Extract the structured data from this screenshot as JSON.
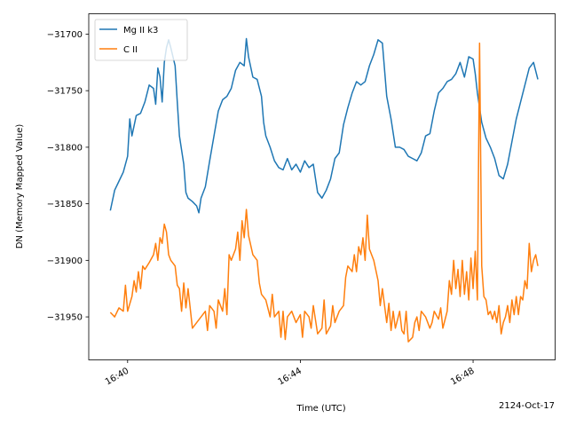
{
  "chart_data": {
    "type": "line",
    "xlabel": "Time (UTC)",
    "ylabel": "DN (Memory Mapped Value)",
    "date_label": "2124-Oct-17",
    "x_ticks": [
      "16:40",
      "16:44",
      "16:48"
    ],
    "y_ticks": [
      "−31950",
      "−31900",
      "−31850",
      "−31800",
      "−31750",
      "−31700"
    ],
    "xlim": [
      "16:39.1",
      "16:49.9"
    ],
    "ylim": [
      -31988,
      -31682
    ],
    "legend_position": "upper left",
    "series": [
      {
        "name": "Mg II k3",
        "color": "#1f77b4",
        "points": [
          [
            "16:39.6",
            -31856
          ],
          [
            "16:39.7",
            -31838
          ],
          [
            "16:39.8",
            -31830
          ],
          [
            "16:39.9",
            -31822
          ],
          [
            "16:40.0",
            -31808
          ],
          [
            "16:40.05",
            -31775
          ],
          [
            "16:40.1",
            -31790
          ],
          [
            "16:40.2",
            -31772
          ],
          [
            "16:40.3",
            -31770
          ],
          [
            "16:40.4",
            -31760
          ],
          [
            "16:40.5",
            -31745
          ],
          [
            "16:40.6",
            -31748
          ],
          [
            "16:40.65",
            -31762
          ],
          [
            "16:40.7",
            -31730
          ],
          [
            "16:40.75",
            -31738
          ],
          [
            "16:40.8",
            -31760
          ],
          [
            "16:40.85",
            -31725
          ],
          [
            "16:40.9",
            -31712
          ],
          [
            "16:40.95",
            -31705
          ],
          [
            "16:41.0",
            -31712
          ],
          [
            "16:41.1",
            -31728
          ],
          [
            "16:41.15",
            -31760
          ],
          [
            "16:41.2",
            -31790
          ],
          [
            "16:41.3",
            -31815
          ],
          [
            "16:41.35",
            -31840
          ],
          [
            "16:41.4",
            -31845
          ],
          [
            "16:41.5",
            -31848
          ],
          [
            "16:41.6",
            -31852
          ],
          [
            "16:41.65",
            -31858
          ],
          [
            "16:41.7",
            -31845
          ],
          [
            "16:41.8",
            -31835
          ],
          [
            "16:41.9",
            -31812
          ],
          [
            "16:42.0",
            -31790
          ],
          [
            "16:42.1",
            -31768
          ],
          [
            "16:42.2",
            -31758
          ],
          [
            "16:42.3",
            -31755
          ],
          [
            "16:42.4",
            -31748
          ],
          [
            "16:42.5",
            -31732
          ],
          [
            "16:42.6",
            -31725
          ],
          [
            "16:42.7",
            -31728
          ],
          [
            "16:42.75",
            -31704
          ],
          [
            "16:42.8",
            -31720
          ],
          [
            "16:42.9",
            -31738
          ],
          [
            "16:43.0",
            -31740
          ],
          [
            "16:43.1",
            -31755
          ],
          [
            "16:43.15",
            -31778
          ],
          [
            "16:43.2",
            -31790
          ],
          [
            "16:43.3",
            -31800
          ],
          [
            "16:43.4",
            -31812
          ],
          [
            "16:43.5",
            -31818
          ],
          [
            "16:43.6",
            -31820
          ],
          [
            "16:43.7",
            -31810
          ],
          [
            "16:43.8",
            -31820
          ],
          [
            "16:43.9",
            -31815
          ],
          [
            "16:44.0",
            -31822
          ],
          [
            "16:44.1",
            -31812
          ],
          [
            "16:44.2",
            -31818
          ],
          [
            "16:44.3",
            -31815
          ],
          [
            "16:44.4",
            -31840
          ],
          [
            "16:44.5",
            -31845
          ],
          [
            "16:44.6",
            -31838
          ],
          [
            "16:44.7",
            -31828
          ],
          [
            "16:44.8",
            -31810
          ],
          [
            "16:44.9",
            -31805
          ],
          [
            "16:45.0",
            -31780
          ],
          [
            "16:45.1",
            -31765
          ],
          [
            "16:45.2",
            -31752
          ],
          [
            "16:45.3",
            -31742
          ],
          [
            "16:45.4",
            -31745
          ],
          [
            "16:45.5",
            -31742
          ],
          [
            "16:45.6",
            -31728
          ],
          [
            "16:45.7",
            -31718
          ],
          [
            "16:45.8",
            -31705
          ],
          [
            "16:45.9",
            -31708
          ],
          [
            "16:46.0",
            -31755
          ],
          [
            "16:46.1",
            -31775
          ],
          [
            "16:46.2",
            -31800
          ],
          [
            "16:46.3",
            -31800
          ],
          [
            "16:46.4",
            -31802
          ],
          [
            "16:46.5",
            -31808
          ],
          [
            "16:46.6",
            -31810
          ],
          [
            "16:46.7",
            -31812
          ],
          [
            "16:46.8",
            -31805
          ],
          [
            "16:46.9",
            -31790
          ],
          [
            "16:47.0",
            -31788
          ],
          [
            "16:47.1",
            -31768
          ],
          [
            "16:47.2",
            -31752
          ],
          [
            "16:47.3",
            -31748
          ],
          [
            "16:47.4",
            -31742
          ],
          [
            "16:47.5",
            -31740
          ],
          [
            "16:47.6",
            -31735
          ],
          [
            "16:47.7",
            -31725
          ],
          [
            "16:47.8",
            -31738
          ],
          [
            "16:47.9",
            -31720
          ],
          [
            "16:48.0",
            -31722
          ],
          [
            "16:48.05",
            -31735
          ],
          [
            "16:48.1",
            -31752
          ],
          [
            "16:48.2",
            -31778
          ],
          [
            "16:48.3",
            -31792
          ],
          [
            "16:48.4",
            -31800
          ],
          [
            "16:48.5",
            -31810
          ],
          [
            "16:48.6",
            -31825
          ],
          [
            "16:48.7",
            -31828
          ],
          [
            "16:48.8",
            -31815
          ],
          [
            "16:48.9",
            -31795
          ],
          [
            "16:49.0",
            -31775
          ],
          [
            "16:49.1",
            -31760
          ],
          [
            "16:49.2",
            -31745
          ],
          [
            "16:49.3",
            -31730
          ],
          [
            "16:49.4",
            -31725
          ],
          [
            "16:49.5",
            -31740
          ]
        ]
      },
      {
        "name": "C II",
        "color": "#ff7f0e",
        "points": [
          [
            "16:39.6",
            -31946
          ],
          [
            "16:39.7",
            -31950
          ],
          [
            "16:39.8",
            -31942
          ],
          [
            "16:39.9",
            -31945
          ],
          [
            "16:39.95",
            -31922
          ],
          [
            "16:40.0",
            -31945
          ],
          [
            "16:40.1",
            -31932
          ],
          [
            "16:40.15",
            -31918
          ],
          [
            "16:40.2",
            -31928
          ],
          [
            "16:40.25",
            -31910
          ],
          [
            "16:40.3",
            -31925
          ],
          [
            "16:40.35",
            -31905
          ],
          [
            "16:40.4",
            -31908
          ],
          [
            "16:40.5",
            -31902
          ],
          [
            "16:40.6",
            -31895
          ],
          [
            "16:40.65",
            -31885
          ],
          [
            "16:40.7",
            -31900
          ],
          [
            "16:40.75",
            -31880
          ],
          [
            "16:40.8",
            -31885
          ],
          [
            "16:40.85",
            -31868
          ],
          [
            "16:40.9",
            -31875
          ],
          [
            "16:40.95",
            -31895
          ],
          [
            "16:41.0",
            -31900
          ],
          [
            "16:41.1",
            -31905
          ],
          [
            "16:41.15",
            -31922
          ],
          [
            "16:41.2",
            -31925
          ],
          [
            "16:41.25",
            -31945
          ],
          [
            "16:41.3",
            -31920
          ],
          [
            "16:41.35",
            -31942
          ],
          [
            "16:41.4",
            -31925
          ],
          [
            "16:41.5",
            -31960
          ],
          [
            "16:41.6",
            -31955
          ],
          [
            "16:41.7",
            -31950
          ],
          [
            "16:41.8",
            -31945
          ],
          [
            "16:41.85",
            -31962
          ],
          [
            "16:41.9",
            -31940
          ],
          [
            "16:42.0",
            -31945
          ],
          [
            "16:42.05",
            -31960
          ],
          [
            "16:42.1",
            -31935
          ],
          [
            "16:42.2",
            -31945
          ],
          [
            "16:42.25",
            -31925
          ],
          [
            "16:42.3",
            -31948
          ],
          [
            "16:42.35",
            -31895
          ],
          [
            "16:42.4",
            -31900
          ],
          [
            "16:42.5",
            -31890
          ],
          [
            "16:42.55",
            -31875
          ],
          [
            "16:42.6",
            -31900
          ],
          [
            "16:42.65",
            -31865
          ],
          [
            "16:42.7",
            -31880
          ],
          [
            "16:42.75",
            -31855
          ],
          [
            "16:42.8",
            -31878
          ],
          [
            "16:42.9",
            -31895
          ],
          [
            "16:43.0",
            -31900
          ],
          [
            "16:43.05",
            -31920
          ],
          [
            "16:43.1",
            -31930
          ],
          [
            "16:43.2",
            -31935
          ],
          [
            "16:43.3",
            -31950
          ],
          [
            "16:43.35",
            -31930
          ],
          [
            "16:43.4",
            -31950
          ],
          [
            "16:43.5",
            -31945
          ],
          [
            "16:43.55",
            -31968
          ],
          [
            "16:43.6",
            -31945
          ],
          [
            "16:43.65",
            -31970
          ],
          [
            "16:43.7",
            -31950
          ],
          [
            "16:43.8",
            -31945
          ],
          [
            "16:43.9",
            -31955
          ],
          [
            "16:44.0",
            -31948
          ],
          [
            "16:44.05",
            -31968
          ],
          [
            "16:44.1",
            -31945
          ],
          [
            "16:44.2",
            -31950
          ],
          [
            "16:44.25",
            -31960
          ],
          [
            "16:44.3",
            -31940
          ],
          [
            "16:44.4",
            -31965
          ],
          [
            "16:44.5",
            -31960
          ],
          [
            "16:44.55",
            -31935
          ],
          [
            "16:44.6",
            -31965
          ],
          [
            "16:44.7",
            -31958
          ],
          [
            "16:44.75",
            -31940
          ],
          [
            "16:44.8",
            -31955
          ],
          [
            "16:44.9",
            -31945
          ],
          [
            "16:45.0",
            -31940
          ],
          [
            "16:45.05",
            -31915
          ],
          [
            "16:45.1",
            -31905
          ],
          [
            "16:45.2",
            -31910
          ],
          [
            "16:45.25",
            -31895
          ],
          [
            "16:45.3",
            -31910
          ],
          [
            "16:45.35",
            -31888
          ],
          [
            "16:45.4",
            -31895
          ],
          [
            "16:45.45",
            -31880
          ],
          [
            "16:45.5",
            -31900
          ],
          [
            "16:45.55",
            -31860
          ],
          [
            "16:45.6",
            -31890
          ],
          [
            "16:45.7",
            -31900
          ],
          [
            "16:45.8",
            -31918
          ],
          [
            "16:45.85",
            -31940
          ],
          [
            "16:45.9",
            -31925
          ],
          [
            "16:46.0",
            -31955
          ],
          [
            "16:46.05",
            -31938
          ],
          [
            "16:46.1",
            -31962
          ],
          [
            "16:46.15",
            -31945
          ],
          [
            "16:46.2",
            -31960
          ],
          [
            "16:46.3",
            -31945
          ],
          [
            "16:46.35",
            -31962
          ],
          [
            "16:46.4",
            -31965
          ],
          [
            "16:46.45",
            -31945
          ],
          [
            "16:46.5",
            -31972
          ],
          [
            "16:46.6",
            -31968
          ],
          [
            "16:46.65",
            -31955
          ],
          [
            "16:46.7",
            -31950
          ],
          [
            "16:46.75",
            -31962
          ],
          [
            "16:46.8",
            -31945
          ],
          [
            "16:46.9",
            -31950
          ],
          [
            "16:47.0",
            -31960
          ],
          [
            "16:47.05",
            -31955
          ],
          [
            "16:47.1",
            -31945
          ],
          [
            "16:47.2",
            -31952
          ],
          [
            "16:47.25",
            -31942
          ],
          [
            "16:47.3",
            -31960
          ],
          [
            "16:47.4",
            -31945
          ],
          [
            "16:47.45",
            -31918
          ],
          [
            "16:47.5",
            -31930
          ],
          [
            "16:47.55",
            -31900
          ],
          [
            "16:47.6",
            -31925
          ],
          [
            "16:47.65",
            -31908
          ],
          [
            "16:47.7",
            -31932
          ],
          [
            "16:47.75",
            -31900
          ],
          [
            "16:47.8",
            -31930
          ],
          [
            "16:47.85",
            -31910
          ],
          [
            "16:47.9",
            -31935
          ],
          [
            "16:47.95",
            -31898
          ],
          [
            "16:48.0",
            -31925
          ],
          [
            "16:48.05",
            -31892
          ],
          [
            "16:48.1",
            -31935
          ],
          [
            "16:48.15",
            -31708
          ],
          [
            "16:48.2",
            -31905
          ],
          [
            "16:48.25",
            -31932
          ],
          [
            "16:48.3",
            -31935
          ],
          [
            "16:48.35",
            -31948
          ],
          [
            "16:48.4",
            -31945
          ],
          [
            "16:48.45",
            -31952
          ],
          [
            "16:48.5",
            -31945
          ],
          [
            "16:48.55",
            -31955
          ],
          [
            "16:48.6",
            -31940
          ],
          [
            "16:48.65",
            -31965
          ],
          [
            "16:48.7",
            -31955
          ],
          [
            "16:48.75",
            -31950
          ],
          [
            "16:48.8",
            -31940
          ],
          [
            "16:48.85",
            -31955
          ],
          [
            "16:48.9",
            -31935
          ],
          [
            "16:48.95",
            -31948
          ],
          [
            "16:49.0",
            -31932
          ],
          [
            "16:49.05",
            -31948
          ],
          [
            "16:49.1",
            -31932
          ],
          [
            "16:49.15",
            -31935
          ],
          [
            "16:49.2",
            -31918
          ],
          [
            "16:49.25",
            -31925
          ],
          [
            "16:49.3",
            -31885
          ],
          [
            "16:49.35",
            -31910
          ],
          [
            "16:49.4",
            -31900
          ],
          [
            "16:49.45",
            -31895
          ],
          [
            "16:49.5",
            -31905
          ]
        ]
      }
    ]
  }
}
